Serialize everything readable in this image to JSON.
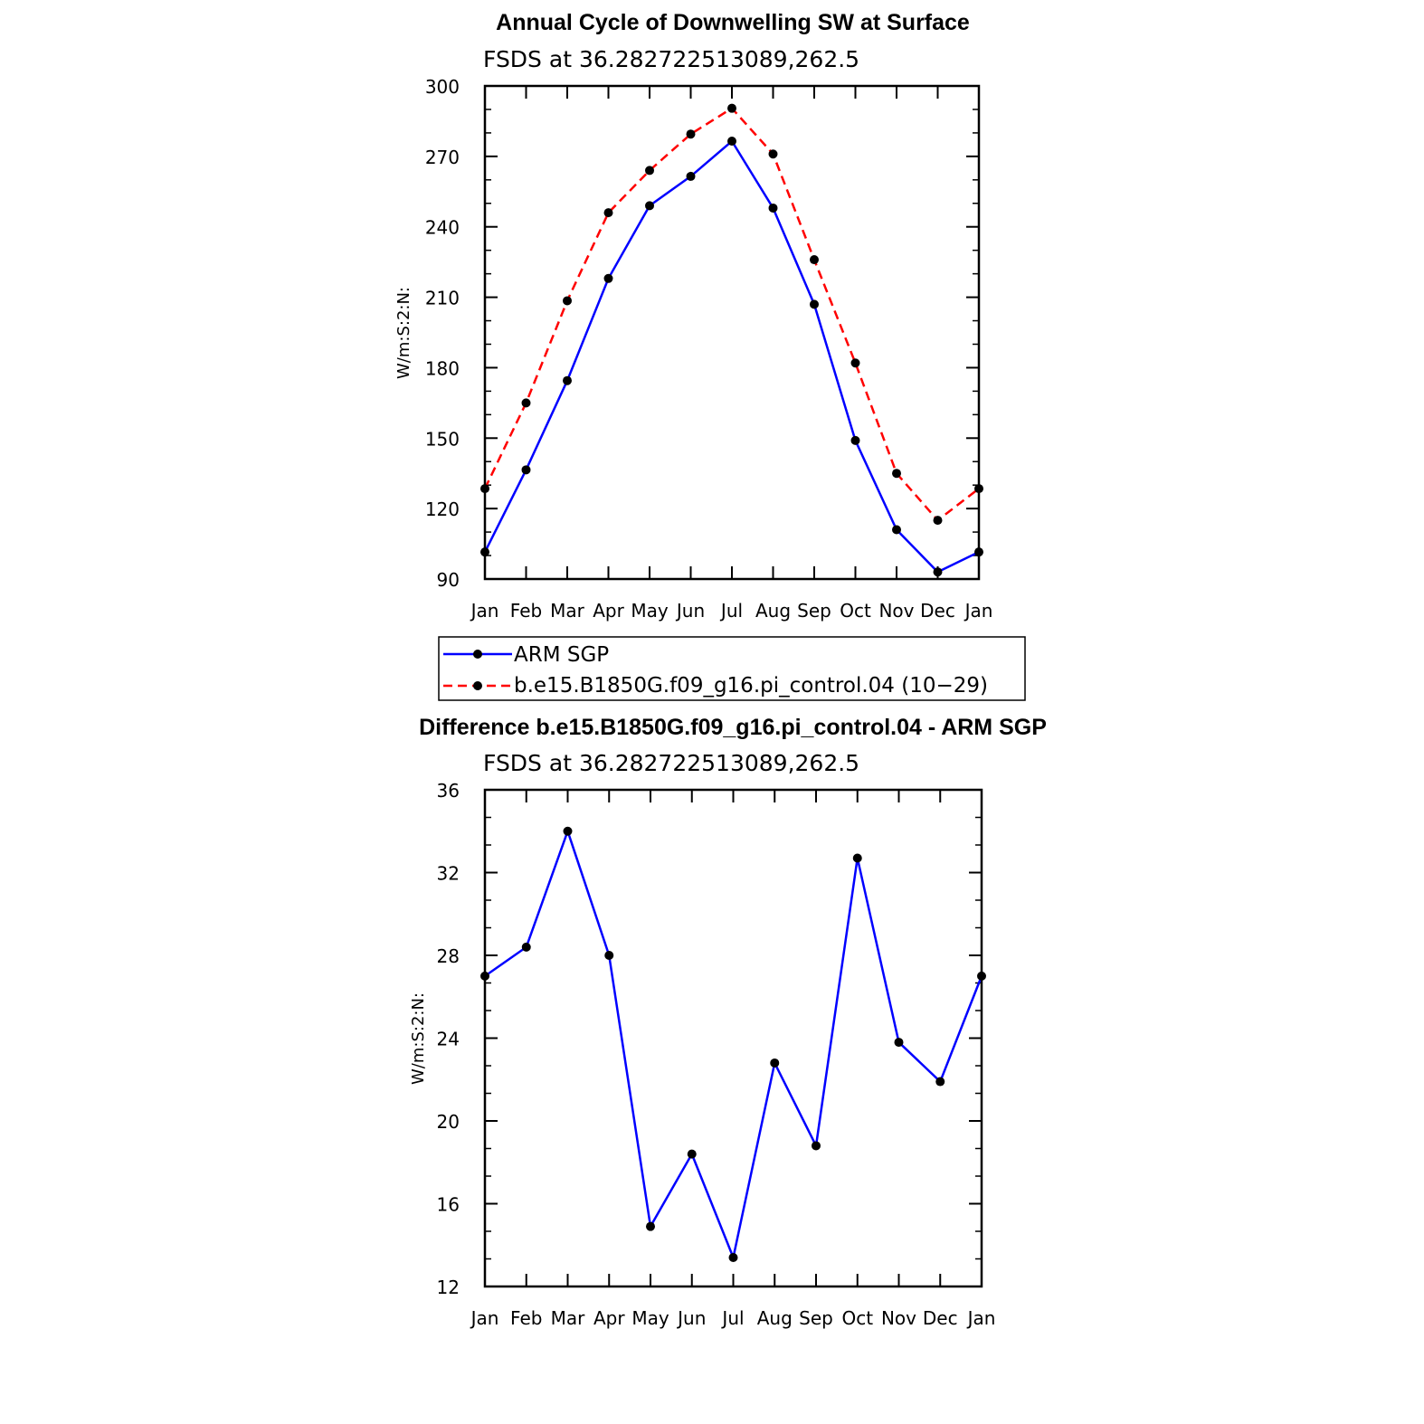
{
  "charts": [
    {
      "title": "Annual Cycle of Downwelling SW at Surface",
      "subtitle": "FSDS at 36.282722513089,262.5",
      "ylabel": "W/m:S:2:N:"
    },
    {
      "title": "Difference b.e15.B1850G.f09_g16.pi_control.04 - ARM SGP",
      "subtitle": "FSDS at 36.282722513089,262.5",
      "ylabel": "W/m:S:2:N:"
    }
  ],
  "legend": {
    "items": [
      {
        "label": "ARM SGP",
        "color": "#0000ff",
        "dash": "solid"
      },
      {
        "label": "b.e15.B1850G.f09_g16.pi_control.04 (10−29)",
        "color": "#ff0000",
        "dash": "dashed"
      }
    ]
  },
  "chart_data": [
    {
      "type": "line",
      "title": "Annual Cycle of Downwelling SW at Surface",
      "subtitle": "FSDS at 36.282722513089,262.5",
      "ylabel": "W/m:S:2:N:",
      "xlabel": "",
      "categories": [
        "Jan",
        "Feb",
        "Mar",
        "Apr",
        "May",
        "Jun",
        "Jul",
        "Aug",
        "Sep",
        "Oct",
        "Nov",
        "Dec",
        "Jan"
      ],
      "yticks": [
        90,
        120,
        150,
        180,
        210,
        240,
        270,
        300
      ],
      "ylim": [
        90,
        300
      ],
      "grid": false,
      "legend_position": "below",
      "series": [
        {
          "name": "ARM SGP",
          "color": "#0000ff",
          "dash": "solid",
          "values": [
            101.5,
            136.5,
            174.5,
            218,
            249,
            261.5,
            276.5,
            248,
            207,
            149,
            111,
            93,
            101.5
          ]
        },
        {
          "name": "b.e15.B1850G.f09_g16.pi_control.04 (10−29)",
          "color": "#ff0000",
          "dash": "dashed",
          "values": [
            128.5,
            165,
            208.5,
            246,
            264,
            279.5,
            290.5,
            271,
            226,
            182,
            135,
            115,
            128.5
          ]
        }
      ]
    },
    {
      "type": "line",
      "title": "Difference b.e15.B1850G.f09_g16.pi_control.04 - ARM SGP",
      "subtitle": "FSDS at 36.282722513089,262.5",
      "ylabel": "W/m:S:2:N:",
      "xlabel": "",
      "categories": [
        "Jan",
        "Feb",
        "Mar",
        "Apr",
        "May",
        "Jun",
        "Jul",
        "Aug",
        "Sep",
        "Oct",
        "Nov",
        "Dec",
        "Jan"
      ],
      "yticks": [
        12,
        16,
        20,
        24,
        28,
        32,
        36
      ],
      "ylim": [
        12,
        36
      ],
      "grid": false,
      "series": [
        {
          "color": "#0000ff",
          "dash": "solid",
          "values": [
            27,
            28.4,
            34,
            28,
            14.9,
            18.4,
            13.4,
            22.8,
            18.8,
            32.7,
            23.8,
            21.9,
            27
          ]
        }
      ]
    }
  ]
}
